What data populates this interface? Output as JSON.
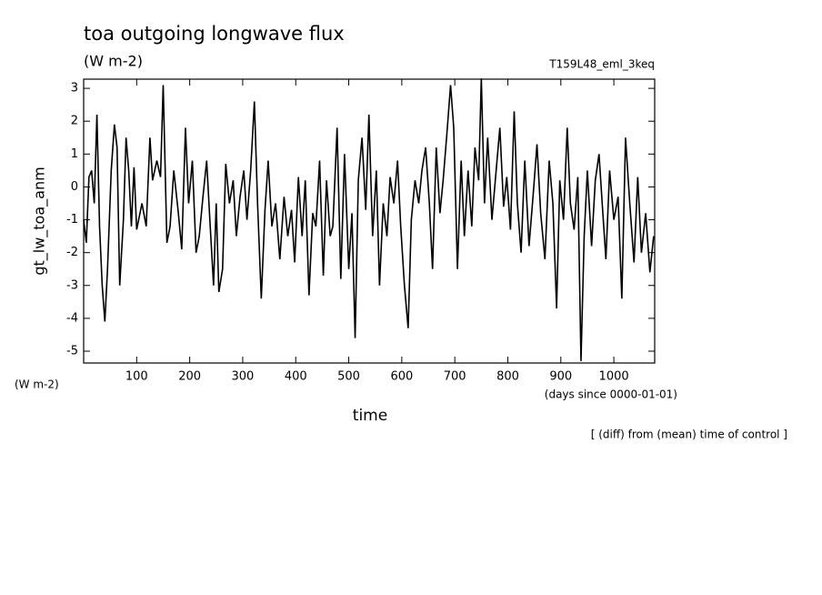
{
  "chart_data": {
    "type": "line",
    "title": "toa outgoing longwave flux",
    "subtitle": "(W m-2)",
    "annotation": "T159L48_eml_3keq",
    "y_label": "gt_lw_toa_anm",
    "y_unit_label": "(W m-2)",
    "x_label": "time",
    "x_unit_label": "(days since 0000-01-01)",
    "note": "[ (diff) from (mean) time of control ]",
    "xlim": [
      0,
      1077
    ],
    "ylim": [
      -5.36,
      3.28
    ],
    "xticks": [
      100,
      200,
      300,
      400,
      500,
      600,
      700,
      800,
      900,
      1000
    ],
    "yticks": [
      -5,
      -4,
      -3,
      -2,
      -1,
      0,
      1,
      2,
      3
    ],
    "series": [
      {
        "name": "gt_lw_toa_anm",
        "color": "#000000",
        "x": [
          0,
          5,
          10,
          15,
          20,
          25,
          30,
          35,
          40,
          45,
          52,
          58,
          63,
          68,
          75,
          80,
          85,
          90,
          95,
          100,
          110,
          118,
          125,
          130,
          138,
          145,
          150,
          157,
          163,
          170,
          178,
          185,
          192,
          198,
          205,
          212,
          218,
          225,
          232,
          238,
          245,
          250,
          255,
          262,
          268,
          275,
          282,
          288,
          295,
          302,
          308,
          315,
          322,
          328,
          335,
          342,
          348,
          355,
          362,
          370,
          378,
          385,
          392,
          398,
          405,
          412,
          418,
          425,
          432,
          438,
          445,
          452,
          458,
          465,
          470,
          478,
          485,
          492,
          500,
          506,
          512,
          518,
          525,
          532,
          538,
          545,
          552,
          558,
          565,
          572,
          578,
          585,
          592,
          598,
          605,
          612,
          618,
          625,
          632,
          638,
          645,
          652,
          658,
          665,
          672,
          678,
          685,
          692,
          698,
          705,
          712,
          718,
          725,
          732,
          738,
          745,
          750,
          756,
          762,
          770,
          778,
          785,
          792,
          798,
          805,
          812,
          818,
          825,
          832,
          840,
          848,
          855,
          862,
          870,
          878,
          885,
          892,
          898,
          905,
          912,
          918,
          925,
          932,
          938,
          944,
          950,
          958,
          965,
          972,
          978,
          985,
          992,
          1000,
          1008,
          1015,
          1022,
          1030,
          1038,
          1045,
          1052,
          1060,
          1068,
          1075
        ],
        "values": [
          -1,
          -1.7,
          0.3,
          0.5,
          -0.5,
          2.2,
          -1.2,
          -3,
          -4.1,
          -2.5,
          0.5,
          1.9,
          1.2,
          -3,
          -1,
          1.5,
          0.5,
          -1.2,
          0.6,
          -1.3,
          -0.5,
          -1.2,
          1.5,
          0.2,
          0.8,
          0.3,
          3.1,
          -1.7,
          -1.2,
          0.5,
          -0.7,
          -1.9,
          1.8,
          -0.5,
          0.8,
          -2,
          -1.5,
          -0.3,
          0.8,
          -1,
          -3,
          -0.5,
          -3.2,
          -2.5,
          0.7,
          -0.5,
          0.2,
          -1.5,
          -0.3,
          0.5,
          -1,
          0.5,
          2.6,
          -0.5,
          -3.4,
          -0.7,
          0.8,
          -1.2,
          -0.5,
          -2.2,
          -0.3,
          -1.5,
          -0.7,
          -2.3,
          0.3,
          -1.5,
          0.2,
          -3.3,
          -0.8,
          -1.2,
          0.8,
          -2.7,
          0.2,
          -1.5,
          -1.2,
          1.8,
          -2.8,
          1,
          -2.5,
          -0.8,
          -4.6,
          0.2,
          1.5,
          -0.7,
          2.2,
          -1.5,
          0.5,
          -3,
          -0.5,
          -1.5,
          0.3,
          -0.5,
          0.8,
          -1.2,
          -3,
          -4.3,
          -1,
          0.2,
          -0.5,
          0.5,
          1.2,
          -0.5,
          -2.5,
          1.2,
          -0.8,
          0.2,
          1.6,
          3.1,
          1.8,
          -2.5,
          0.8,
          -1.5,
          0.5,
          -1.2,
          1.2,
          0.2,
          3.3,
          -0.5,
          1.5,
          -1,
          0.5,
          1.8,
          -0.6,
          0.3,
          -1.3,
          2.3,
          -0.5,
          -2,
          0.8,
          -1.8,
          -0.2,
          1.3,
          -0.8,
          -2.2,
          0.8,
          -0.5,
          -3.7,
          0.2,
          -1,
          1.8,
          -0.5,
          -1.3,
          0.3,
          -5.3,
          -1.5,
          0.5,
          -1.8,
          0.2,
          1,
          -0.5,
          -2.2,
          0.5,
          -1,
          -0.3,
          -3.4,
          1.5,
          -0.5,
          -2.3,
          0.3,
          -2,
          -0.8,
          -2.6,
          -1.5
        ]
      }
    ]
  }
}
